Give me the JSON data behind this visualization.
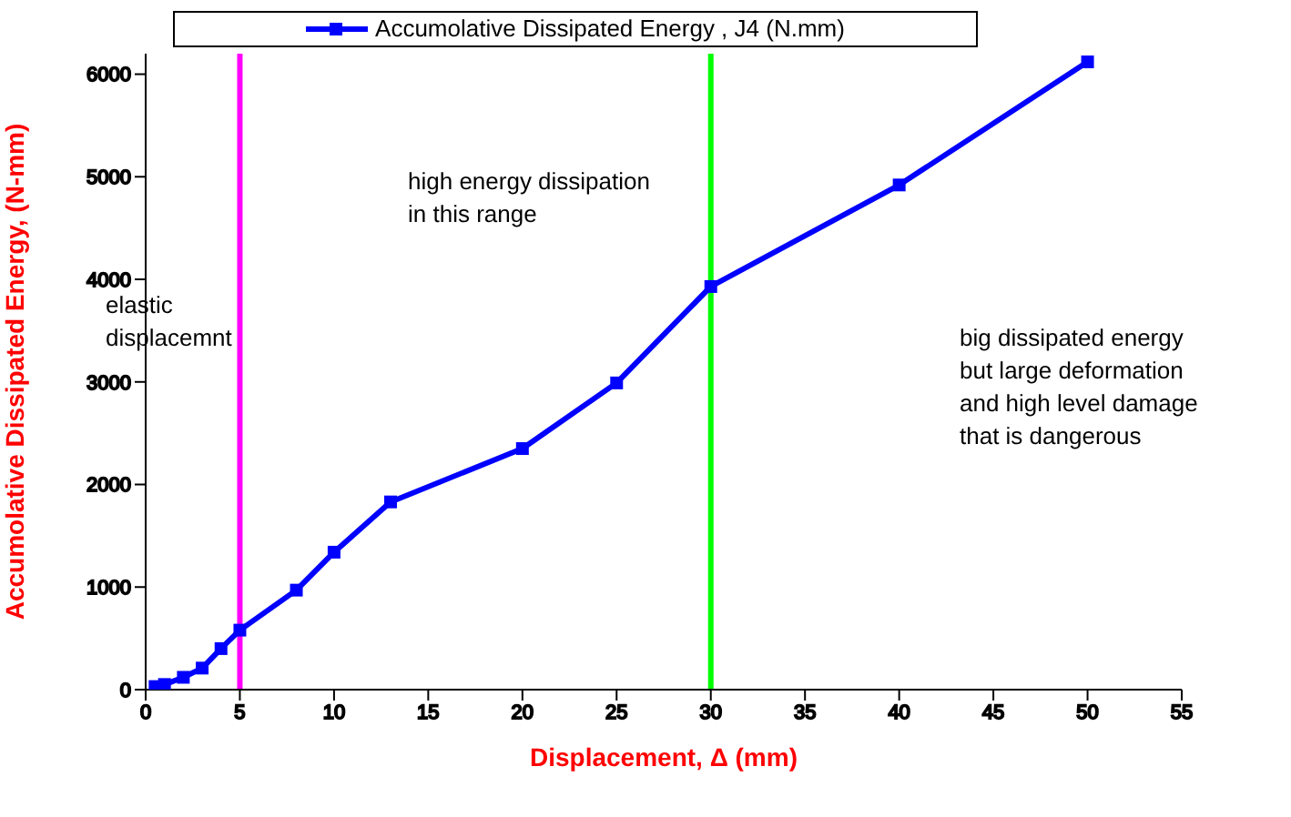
{
  "chart_data": {
    "type": "line",
    "xlabel": "Displacement, Δ (mm)",
    "ylabel": "Accumolative  Dissipated Energy, (N-mm)",
    "x": [
      0.5,
      1,
      2,
      3,
      4,
      5,
      8,
      10,
      13,
      20,
      25,
      30,
      40,
      50
    ],
    "series": [
      {
        "name": "Accumolative  Dissipated Energy , J4  (N.mm)",
        "color": "#0000ff",
        "values": [
          30,
          50,
          120,
          210,
          400,
          580,
          970,
          1340,
          1830,
          2350,
          2990,
          3930,
          4920,
          6120
        ]
      }
    ],
    "xlim": [
      0,
      55
    ],
    "xticks": [
      0,
      5,
      10,
      15,
      20,
      25,
      30,
      35,
      40,
      45,
      50,
      55
    ],
    "ylim": [
      0,
      6200
    ],
    "yticks": [
      0,
      1000,
      2000,
      3000,
      4000,
      5000,
      6000
    ],
    "ref_lines": [
      {
        "axis": "x",
        "value": 5,
        "color": "#ff00ff"
      },
      {
        "axis": "x",
        "value": 30,
        "color": "#00ff00"
      }
    ],
    "annotations": [
      "elastic\ndisplacemnt",
      "high energy dissipation\nin this range",
      "big dissipated energy\nbut large deformation\nand high level damage\nthat is dangerous"
    ],
    "legend": "top",
    "marker": "square",
    "line_style": "solid",
    "grid": false
  }
}
